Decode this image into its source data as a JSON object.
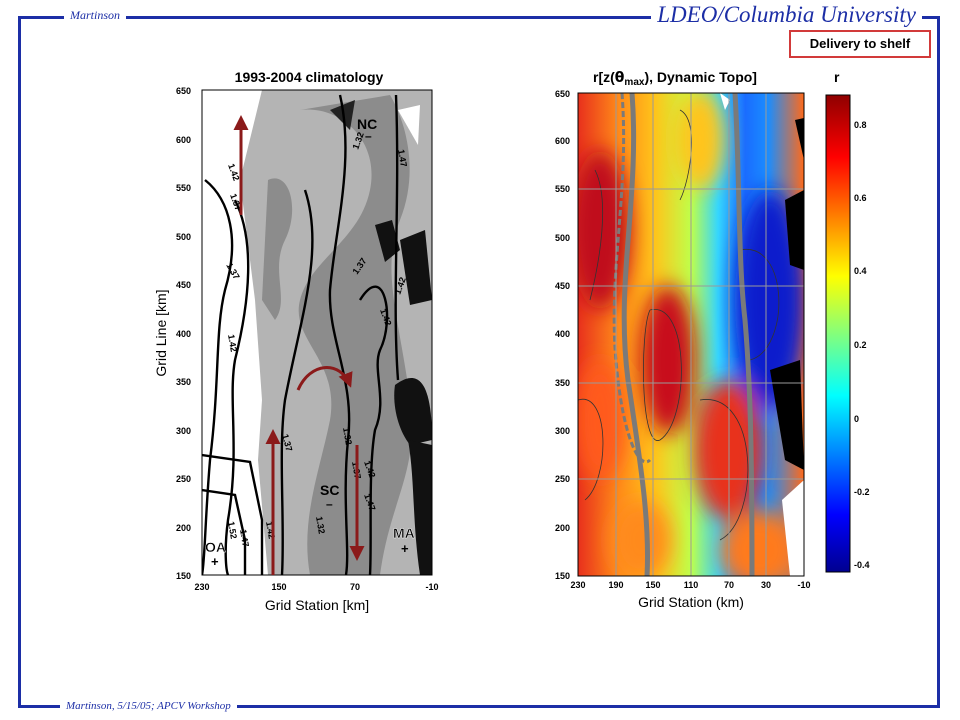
{
  "header": {
    "author": "Martinson",
    "institution": "LDEO/Columbia University"
  },
  "footer": {
    "text": "Martinson, 5/15/05; APCV Workshop"
  },
  "badge": {
    "label": "Delivery to shelf"
  },
  "chart_data": [
    {
      "type": "heatmap",
      "title": "1993-2004 climatology",
      "xlabel": "Grid Station [km]",
      "ylabel": "Grid Line [km]",
      "xticks": [
        "230",
        "150",
        "70",
        "-10"
      ],
      "yticks": [
        "150",
        "200",
        "250",
        "300",
        "350",
        "400",
        "450",
        "500",
        "550",
        "600",
        "650"
      ],
      "xlim": [
        230,
        -10
      ],
      "ylim": [
        150,
        650
      ],
      "contour_labels": [
        "1.42",
        "1.37",
        "1.37",
        "1.37",
        "1.32",
        "1.47",
        "1.42",
        "1.42",
        "1.42",
        "1.37",
        "1.32",
        "1.37",
        "1.42",
        "1.47",
        "1.52",
        "1.47",
        "1.42",
        "1.32"
      ],
      "region_labels": [
        "NC",
        "SC",
        "OA",
        "MA"
      ]
    },
    {
      "type": "heatmap",
      "title": "r[z(θmax), Dynamic Topo]",
      "xlabel": "Grid Station (km)",
      "xticks": [
        "230",
        "190",
        "150",
        "110",
        "70",
        "30",
        "-10"
      ],
      "yticks": [
        "150",
        "200",
        "250",
        "300",
        "350",
        "400",
        "450",
        "500",
        "550",
        "600",
        "650"
      ],
      "xlim": [
        230,
        -10
      ],
      "ylim": [
        150,
        650
      ],
      "grid": true,
      "colorbar": {
        "label": "r",
        "ticks": [
          "-0.4",
          "-0.2",
          "0",
          "0.2",
          "0.4",
          "0.6",
          "0.8"
        ],
        "range": [
          -0.47,
          0.87
        ]
      }
    }
  ]
}
